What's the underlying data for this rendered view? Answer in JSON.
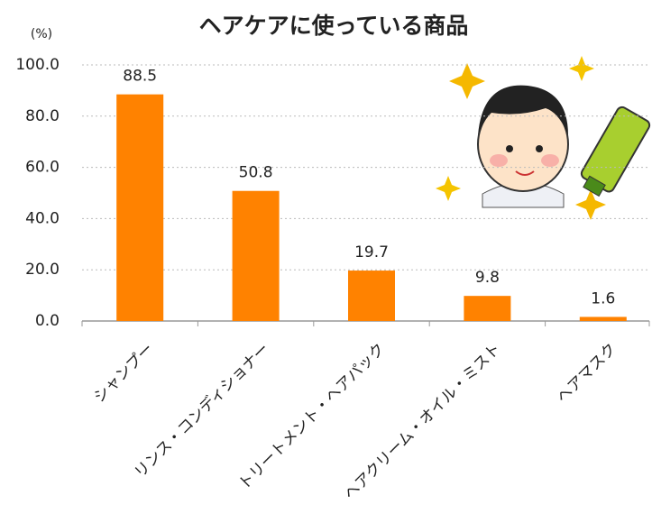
{
  "chart_data": {
    "type": "bar",
    "title": "ヘアケアに使っている商品",
    "y_unit": "(%)",
    "categories": [
      "シャンプー",
      "リンス・コンディショナー",
      "トリートメント・ヘアパック",
      "ヘアクリーム・オイル・ミスト",
      "ヘアマスク"
    ],
    "values": [
      88.5,
      50.8,
      19.7,
      9.8,
      1.6
    ],
    "color": "#ff8200",
    "ylim": [
      0,
      100
    ],
    "yticks": [
      {
        "value": 0,
        "label": "0.0"
      },
      {
        "value": 20,
        "label": "20.0"
      },
      {
        "value": 40,
        "label": "40.0"
      },
      {
        "value": 60,
        "label": "60.0"
      },
      {
        "value": 80,
        "label": "80.0"
      },
      {
        "value": 100,
        "label": "100.0"
      }
    ],
    "grid": true
  }
}
